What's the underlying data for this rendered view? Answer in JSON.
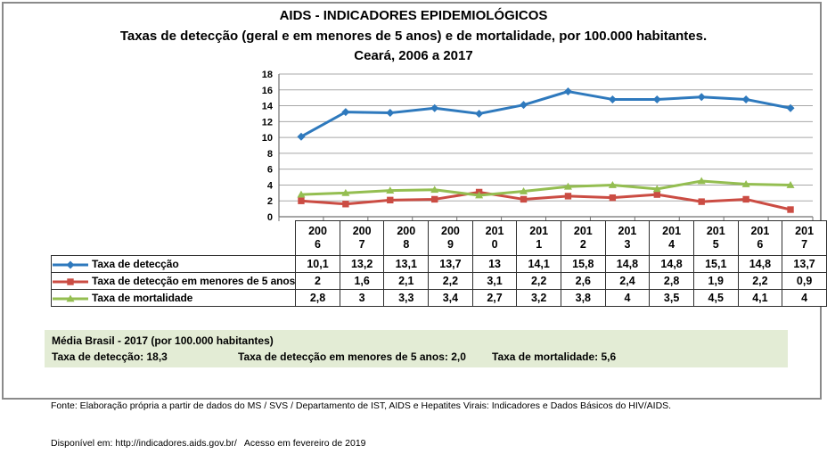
{
  "title": {
    "line1": "AIDS - INDICADORES EPIDEMIOLÓGICOS",
    "line2": "Taxas de detecção (geral e em menores de 5 anos) e de mortalidade, por 100.000 habitantes.",
    "line3": "Ceará, 2006 a 2017"
  },
  "chart_data": {
    "type": "line",
    "title": "AIDS - INDICADORES EPIDEMIOLÓGICOS — Taxas de detecção (geral e em menores de 5 anos) e de mortalidade, por 100.000 habitantes. Ceará, 2006 a 2017",
    "categories": [
      "2006",
      "2007",
      "2008",
      "2009",
      "2010",
      "2011",
      "2012",
      "2013",
      "2014",
      "2015",
      "2016",
      "2017"
    ],
    "series": [
      {
        "name": "Taxa de detecção",
        "marker": "diamond",
        "color": "#2e79bd",
        "values": [
          10.1,
          13.2,
          13.1,
          13.7,
          13,
          14.1,
          15.8,
          14.8,
          14.8,
          15.1,
          14.8,
          13.7
        ]
      },
      {
        "name": "Taxa de detecção em menores de 5 anos",
        "marker": "square",
        "color": "#cb4c43",
        "values": [
          2,
          1.6,
          2.1,
          2.2,
          3.1,
          2.2,
          2.6,
          2.4,
          2.8,
          1.9,
          2.2,
          0.9
        ]
      },
      {
        "name": "Taxa de mortalidade",
        "marker": "triangle",
        "color": "#94be51",
        "values": [
          2.8,
          3,
          3.3,
          3.4,
          2.7,
          3.2,
          3.8,
          4,
          3.5,
          4.5,
          4.1,
          4
        ]
      }
    ],
    "xlabel": "",
    "ylabel": "",
    "ylim": [
      0,
      18
    ],
    "ytick_step": 2,
    "grid": true,
    "legend_position": "table-left",
    "grid_color": "#a8a8a8",
    "axis_color": "#707070"
  },
  "media_box": {
    "heading": "Média Brasil - 2017 (por 100.000 habitantes)",
    "items": [
      {
        "label": "Taxa de detecção:",
        "value": "18,3"
      },
      {
        "label": "Taxa de detecção em menores de 5 anos:",
        "value": "2,0"
      },
      {
        "label": "Taxa de mortalidade:",
        "value": "5,6"
      }
    ],
    "bg_color": "#e3ecd5"
  },
  "footer": {
    "line1": "Fonte: Elaboração própria a partir de dados do MS / SVS / Departamento de IST, AIDS e Hepatites Virais: Indicadores e Dados Básicos do HIV/AIDS.",
    "line2": "Disponível em: http://indicadores.aids.gov.br/   Acesso em fevereiro de 2019"
  }
}
